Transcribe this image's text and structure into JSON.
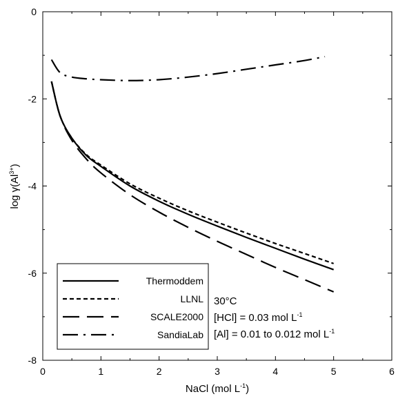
{
  "chart_data": {
    "type": "line",
    "xlabel": {
      "text": "NaCl (mol L",
      "sup": "-1",
      "suffix": ")"
    },
    "ylabel": {
      "prefix": "log γ(Al",
      "sup": "3+",
      "suffix": ")"
    },
    "xlim": [
      0,
      6
    ],
    "ylim": [
      -8,
      0
    ],
    "xticks": [
      0,
      1,
      2,
      3,
      4,
      5,
      6
    ],
    "yticks": [
      0,
      -2,
      -4,
      -6,
      -8
    ],
    "ytick_labels": [
      "0",
      "-2",
      "-4",
      "-6",
      "-8"
    ],
    "grid": false,
    "legend_position": "bottom-left",
    "series": [
      {
        "name": "Thermoddem",
        "style": "solid",
        "x": [
          0.15,
          0.3,
          0.5,
          0.75,
          1.0,
          1.5,
          2.0,
          2.5,
          3.0,
          3.5,
          4.0,
          4.5,
          5.0
        ],
        "y": [
          -1.6,
          -2.4,
          -2.9,
          -3.3,
          -3.55,
          -4.0,
          -4.35,
          -4.65,
          -4.92,
          -5.18,
          -5.43,
          -5.68,
          -5.92
        ]
      },
      {
        "name": "LLNL",
        "style": "short-dash",
        "x": [
          0.15,
          0.3,
          0.5,
          0.75,
          1.0,
          1.5,
          2.0,
          2.5,
          3.0,
          3.5,
          4.0,
          4.5,
          5.0
        ],
        "y": [
          -1.6,
          -2.4,
          -2.9,
          -3.28,
          -3.52,
          -3.95,
          -4.28,
          -4.57,
          -4.83,
          -5.08,
          -5.32,
          -5.55,
          -5.78
        ]
      },
      {
        "name": "SCALE2000",
        "style": "long-dash",
        "x": [
          0.15,
          0.3,
          0.5,
          0.75,
          1.0,
          1.5,
          2.0,
          2.5,
          3.0,
          3.5,
          4.0,
          4.5,
          5.0
        ],
        "y": [
          -1.6,
          -2.4,
          -2.95,
          -3.38,
          -3.7,
          -4.2,
          -4.6,
          -4.95,
          -5.27,
          -5.57,
          -5.87,
          -6.15,
          -6.43
        ]
      },
      {
        "name": "SandiaLab",
        "style": "dash-dot",
        "x": [
          0.15,
          0.3,
          0.5,
          0.75,
          1.0,
          1.5,
          2.0,
          2.5,
          3.0,
          3.5,
          4.0,
          4.5,
          4.85
        ],
        "y": [
          -1.1,
          -1.4,
          -1.5,
          -1.54,
          -1.56,
          -1.58,
          -1.56,
          -1.5,
          -1.42,
          -1.32,
          -1.22,
          -1.12,
          -1.03
        ]
      }
    ],
    "annotations": [
      {
        "text": "30°C"
      },
      {
        "text": "[HCl] = 0.03 mol L",
        "sup": "-1"
      },
      {
        "text": "[Al] = 0.01 to 0.012 mol L",
        "sup": "-1"
      }
    ]
  },
  "colors": {
    "line": "#000000",
    "axis": "#000000",
    "background": "#ffffff"
  }
}
